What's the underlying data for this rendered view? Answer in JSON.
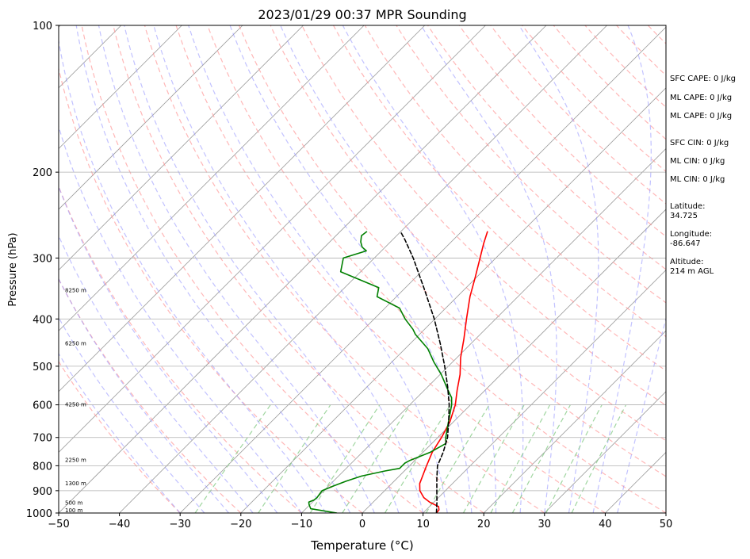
{
  "chart_data": {
    "type": "line",
    "title": "2023/01/29 00:37 MPR Sounding",
    "xlabel": "Temperature (°C)",
    "ylabel": "Pressure (hPa)",
    "xlim": [
      -50,
      50
    ],
    "ylim": [
      1000,
      100
    ],
    "y_scale": "log",
    "grid": true,
    "x_ticks": [
      "−50",
      "−40",
      "−30",
      "−20",
      "−10",
      "0",
      "10",
      "20",
      "30",
      "40",
      "50"
    ],
    "y_ticks": [
      "100",
      "200",
      "300",
      "400",
      "500",
      "600",
      "700",
      "800",
      "900",
      "1000"
    ],
    "series": [
      {
        "role": "temperature",
        "color": "#ff0000",
        "points": [
          [
            1000,
            12.2
          ],
          [
            985,
            12.1
          ],
          [
            970,
            11.5
          ],
          [
            950,
            9.3
          ],
          [
            930,
            7.6
          ],
          [
            900,
            5.8
          ],
          [
            870,
            4.6
          ],
          [
            850,
            4.1
          ],
          [
            800,
            2.8
          ],
          [
            750,
            1.5
          ],
          [
            700,
            0.6
          ],
          [
            650,
            -0.6
          ],
          [
            600,
            -2.5
          ],
          [
            560,
            -4.6
          ],
          [
            520,
            -6.7
          ],
          [
            480,
            -9.4
          ],
          [
            440,
            -11.9
          ],
          [
            400,
            -14.8
          ],
          [
            360,
            -17.9
          ],
          [
            330,
            -20.1
          ],
          [
            300,
            -22.6
          ],
          [
            280,
            -24.4
          ],
          [
            265,
            -25.7
          ]
        ]
      },
      {
        "role": "dewpoint",
        "color": "#008000",
        "points": [
          [
            1000,
            -4.2
          ],
          [
            980,
            -9.2
          ],
          [
            960,
            -10.2
          ],
          [
            950,
            -10.6
          ],
          [
            940,
            -10.1
          ],
          [
            930,
            -10.0
          ],
          [
            900,
            -10.3
          ],
          [
            880,
            -9.2
          ],
          [
            860,
            -7.9
          ],
          [
            840,
            -6.2
          ],
          [
            820,
            -3.2
          ],
          [
            810,
            -1.2
          ],
          [
            790,
            -1.2
          ],
          [
            780,
            -0.8
          ],
          [
            750,
            1.2
          ],
          [
            720,
            2.3
          ],
          [
            700,
            1.3
          ],
          [
            660,
            -0.4
          ],
          [
            600,
            -3.1
          ],
          [
            580,
            -4.3
          ],
          [
            560,
            -6.1
          ],
          [
            520,
            -9.8
          ],
          [
            490,
            -13.1
          ],
          [
            460,
            -16.3
          ],
          [
            430,
            -20.7
          ],
          [
            420,
            -21.9
          ],
          [
            400,
            -24.9
          ],
          [
            380,
            -27.6
          ],
          [
            360,
            -33.2
          ],
          [
            345,
            -34.4
          ],
          [
            320,
            -43.3
          ],
          [
            300,
            -45.1
          ],
          [
            290,
            -42.5
          ],
          [
            285,
            -43.8
          ],
          [
            278,
            -44.9
          ],
          [
            270,
            -45.8
          ],
          [
            265,
            -45.6
          ]
        ]
      },
      {
        "role": "parcel",
        "color": "#000000",
        "style": "dashed",
        "points": [
          [
            1000,
            12.2
          ],
          [
            950,
            10.5
          ],
          [
            900,
            8.6
          ],
          [
            850,
            6.6
          ],
          [
            800,
            4.6
          ],
          [
            750,
            3.3
          ],
          [
            700,
            1.6
          ],
          [
            650,
            -0.8
          ],
          [
            600,
            -3.5
          ],
          [
            550,
            -6.8
          ],
          [
            500,
            -10.6
          ],
          [
            450,
            -15.0
          ],
          [
            400,
            -20.1
          ],
          [
            350,
            -26.3
          ],
          [
            300,
            -33.6
          ],
          [
            275,
            -38.0
          ],
          [
            265,
            -40.0
          ]
        ]
      }
    ],
    "reference_lines": {
      "isotherms_color": "#999999",
      "dry_adiabats_color": "#ff9999",
      "moist_adiabats_color": "#9999ff",
      "mixing_ratio_color": "#88cc88"
    },
    "altitude_labels": [
      "100 m",
      "500 m",
      "1300 m",
      "2250 m",
      "4250 m",
      "6250 m",
      "8250 m"
    ],
    "altitude_label_pressures": [
      1000,
      955,
      870,
      780,
      600,
      450,
      350
    ]
  },
  "stats": {
    "sfc_cape": "SFC CAPE: 0 J/kg",
    "ml_cape_1": "ML CAPE: 0 J/kg",
    "ml_cape_2": "ML CAPE: 0 J/kg",
    "sfc_cin": "SFC CIN: 0 J/kg",
    "ml_cin_1": "ML CIN: 0 J/kg",
    "ml_cin_2": "ML CIN: 0 J/kg",
    "latitude": "Latitude:\n34.725",
    "longitude": "Longitude:\n-86.647",
    "altitude": "Altitude:\n214 m AGL"
  }
}
